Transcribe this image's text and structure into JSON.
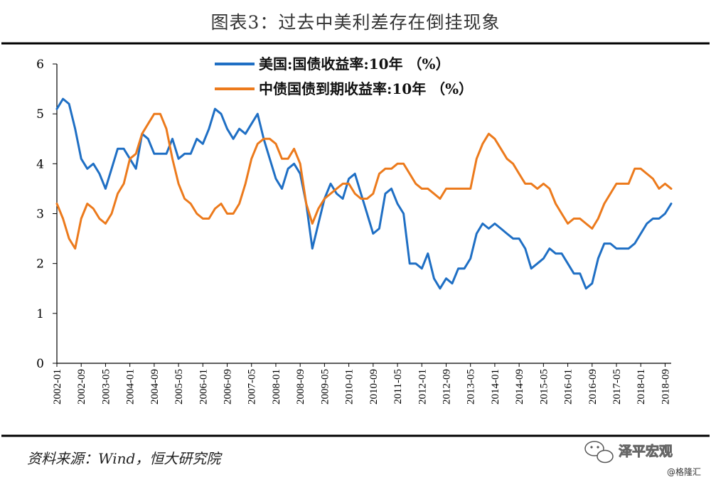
{
  "figure": {
    "title": "图表3：过去中美利差存在倒挂现象",
    "source": "资料来源：Wind，恒大研究院",
    "watermark": "泽平宏观",
    "credit": "@格隆汇"
  },
  "colors": {
    "us": "#1f6fc4",
    "cn": "#ec7a1c",
    "rule": "#000000",
    "axis": "#000000"
  },
  "chart_data": {
    "type": "line",
    "title": "",
    "xlabel": "",
    "ylabel": "",
    "ylim": [
      0,
      6
    ],
    "yticks": [
      "0",
      "1",
      "2",
      "3",
      "4",
      "5",
      "6"
    ],
    "xticks": [
      "2002-01",
      "2002-09",
      "2003-05",
      "2004-01",
      "2004-09",
      "2005-05",
      "2006-01",
      "2006-09",
      "2007-05",
      "2008-01",
      "2008-09",
      "2009-05",
      "2010-01",
      "2010-09",
      "2011-05",
      "2012-01",
      "2012-09",
      "2013-05",
      "2014-01",
      "2014-09",
      "2015-05",
      "2016-01",
      "2016-09",
      "2017-05",
      "2018-01",
      "2018-09"
    ],
    "legend_position": "top-center",
    "grid": false,
    "x": [
      "2002-01",
      "2002-03",
      "2002-05",
      "2002-07",
      "2002-09",
      "2002-11",
      "2003-01",
      "2003-03",
      "2003-05",
      "2003-07",
      "2003-09",
      "2003-11",
      "2004-01",
      "2004-03",
      "2004-05",
      "2004-07",
      "2004-09",
      "2004-11",
      "2005-01",
      "2005-03",
      "2005-05",
      "2005-07",
      "2005-09",
      "2005-11",
      "2006-01",
      "2006-03",
      "2006-05",
      "2006-07",
      "2006-09",
      "2006-11",
      "2007-01",
      "2007-03",
      "2007-05",
      "2007-07",
      "2007-09",
      "2007-11",
      "2008-01",
      "2008-03",
      "2008-05",
      "2008-07",
      "2008-09",
      "2008-11",
      "2009-01",
      "2009-03",
      "2009-05",
      "2009-07",
      "2009-09",
      "2009-11",
      "2010-01",
      "2010-03",
      "2010-05",
      "2010-07",
      "2010-09",
      "2010-11",
      "2011-01",
      "2011-03",
      "2011-05",
      "2011-07",
      "2011-09",
      "2011-11",
      "2012-01",
      "2012-03",
      "2012-05",
      "2012-07",
      "2012-09",
      "2012-11",
      "2013-01",
      "2013-03",
      "2013-05",
      "2013-07",
      "2013-09",
      "2013-11",
      "2014-01",
      "2014-03",
      "2014-05",
      "2014-07",
      "2014-09",
      "2014-11",
      "2015-01",
      "2015-03",
      "2015-05",
      "2015-07",
      "2015-09",
      "2015-11",
      "2016-01",
      "2016-03",
      "2016-05",
      "2016-07",
      "2016-09",
      "2016-11",
      "2017-01",
      "2017-03",
      "2017-05",
      "2017-07",
      "2017-09",
      "2017-11",
      "2018-01",
      "2018-03",
      "2018-05",
      "2018-07",
      "2018-09",
      "2018-11"
    ],
    "series": [
      {
        "name": "美国:国债收益率:10年 （%）",
        "color_key": "us",
        "values": [
          5.1,
          5.3,
          5.2,
          4.7,
          4.1,
          3.9,
          4.0,
          3.8,
          3.5,
          3.9,
          4.3,
          4.3,
          4.1,
          3.9,
          4.6,
          4.5,
          4.2,
          4.2,
          4.2,
          4.5,
          4.1,
          4.2,
          4.2,
          4.5,
          4.4,
          4.7,
          5.1,
          5.0,
          4.7,
          4.5,
          4.7,
          4.6,
          4.8,
          5.0,
          4.5,
          4.1,
          3.7,
          3.5,
          3.9,
          4.0,
          3.8,
          3.2,
          2.3,
          2.8,
          3.3,
          3.6,
          3.4,
          3.3,
          3.7,
          3.8,
          3.4,
          3.0,
          2.6,
          2.7,
          3.4,
          3.5,
          3.2,
          3.0,
          2.0,
          2.0,
          1.9,
          2.2,
          1.7,
          1.5,
          1.7,
          1.6,
          1.9,
          1.9,
          2.1,
          2.6,
          2.8,
          2.7,
          2.8,
          2.7,
          2.6,
          2.5,
          2.5,
          2.3,
          1.9,
          2.0,
          2.1,
          2.3,
          2.2,
          2.2,
          2.0,
          1.8,
          1.8,
          1.5,
          1.6,
          2.1,
          2.4,
          2.4,
          2.3,
          2.3,
          2.3,
          2.4,
          2.6,
          2.8,
          2.9,
          2.9,
          3.0,
          3.2
        ]
      },
      {
        "name": "中债国债到期收益率:10年 （%）",
        "color_key": "cn",
        "values": [
          3.2,
          2.9,
          2.5,
          2.3,
          2.9,
          3.2,
          3.1,
          2.9,
          2.8,
          3.0,
          3.4,
          3.6,
          4.1,
          4.2,
          4.6,
          4.8,
          5.0,
          5.0,
          4.7,
          4.1,
          3.6,
          3.3,
          3.2,
          3.0,
          2.9,
          2.9,
          3.1,
          3.2,
          3.0,
          3.0,
          3.2,
          3.6,
          4.1,
          4.4,
          4.5,
          4.5,
          4.4,
          4.1,
          4.1,
          4.3,
          4.0,
          3.2,
          2.8,
          3.1,
          3.3,
          3.4,
          3.5,
          3.6,
          3.6,
          3.4,
          3.3,
          3.3,
          3.4,
          3.8,
          3.9,
          3.9,
          4.0,
          4.0,
          3.8,
          3.6,
          3.5,
          3.5,
          3.4,
          3.3,
          3.5,
          3.5,
          3.5,
          3.5,
          3.5,
          4.1,
          4.4,
          4.6,
          4.5,
          4.3,
          4.1,
          4.0,
          3.8,
          3.6,
          3.6,
          3.5,
          3.6,
          3.5,
          3.2,
          3.0,
          2.8,
          2.9,
          2.9,
          2.8,
          2.7,
          2.9,
          3.2,
          3.4,
          3.6,
          3.6,
          3.6,
          3.9,
          3.9,
          3.8,
          3.7,
          3.5,
          3.6,
          3.5
        ]
      }
    ]
  }
}
